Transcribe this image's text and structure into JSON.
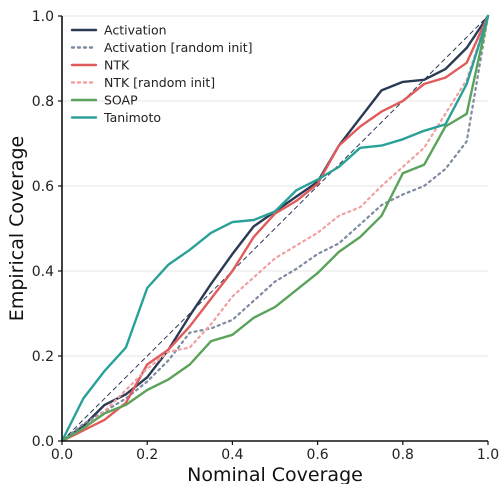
{
  "chart_data": {
    "type": "line",
    "title": "",
    "xlabel": "Nominal Coverage",
    "ylabel": "Empirical Coverage",
    "xlim": [
      0,
      1
    ],
    "ylim": [
      0,
      1
    ],
    "xticks": [
      "0.0",
      "0.2",
      "0.4",
      "0.6",
      "0.8",
      "1.0"
    ],
    "yticks": [
      "0.0",
      "0.2",
      "0.4",
      "0.6",
      "0.8",
      "1.0"
    ],
    "grid": "horizontal",
    "legend_position": "top-left",
    "reference_line": {
      "x": [
        0,
        1
      ],
      "y": [
        0,
        1
      ],
      "color": "#2b3a55",
      "style": "dashed"
    },
    "x": [
      0.0,
      0.05,
      0.1,
      0.15,
      0.2,
      0.25,
      0.3,
      0.35,
      0.4,
      0.45,
      0.5,
      0.55,
      0.6,
      0.65,
      0.7,
      0.75,
      0.8,
      0.85,
      0.9,
      0.95,
      1.0
    ],
    "series": [
      {
        "name": "Activation",
        "color": "#2b3a55",
        "style": "solid",
        "values": [
          0.0,
          0.035,
          0.085,
          0.11,
          0.15,
          0.215,
          0.295,
          0.37,
          0.44,
          0.505,
          0.54,
          0.575,
          0.61,
          0.695,
          0.76,
          0.825,
          0.845,
          0.85,
          0.875,
          0.925,
          1.0
        ]
      },
      {
        "name": "Activation [random init]",
        "color": "#7d8aa0",
        "style": "dotted",
        "values": [
          0.0,
          0.04,
          0.07,
          0.1,
          0.14,
          0.19,
          0.255,
          0.265,
          0.285,
          0.33,
          0.375,
          0.405,
          0.44,
          0.465,
          0.51,
          0.555,
          0.58,
          0.6,
          0.64,
          0.705,
          1.0
        ]
      },
      {
        "name": "NTK",
        "color": "#e05c5c",
        "style": "solid",
        "values": [
          0.0,
          0.025,
          0.05,
          0.09,
          0.18,
          0.215,
          0.27,
          0.335,
          0.4,
          0.48,
          0.535,
          0.565,
          0.605,
          0.695,
          0.74,
          0.775,
          0.8,
          0.84,
          0.855,
          0.89,
          1.0
        ]
      },
      {
        "name": "NTK [random init]",
        "color": "#f0a0a0",
        "style": "dotted",
        "values": [
          0.0,
          0.03,
          0.07,
          0.12,
          0.17,
          0.21,
          0.22,
          0.275,
          0.34,
          0.385,
          0.43,
          0.46,
          0.49,
          0.53,
          0.55,
          0.6,
          0.645,
          0.69,
          0.77,
          0.85,
          1.0
        ]
      },
      {
        "name": "SOAP",
        "color": "#5ba35b",
        "style": "solid",
        "values": [
          0.0,
          0.03,
          0.065,
          0.085,
          0.12,
          0.145,
          0.18,
          0.235,
          0.25,
          0.29,
          0.315,
          0.355,
          0.395,
          0.445,
          0.48,
          0.53,
          0.63,
          0.65,
          0.74,
          0.77,
          1.0
        ]
      },
      {
        "name": "Tanimoto",
        "color": "#2aa198",
        "style": "solid",
        "values": [
          0.0,
          0.1,
          0.165,
          0.22,
          0.36,
          0.415,
          0.45,
          0.49,
          0.515,
          0.52,
          0.54,
          0.59,
          0.615,
          0.645,
          0.69,
          0.695,
          0.71,
          0.73,
          0.745,
          0.84,
          1.0
        ]
      }
    ]
  }
}
